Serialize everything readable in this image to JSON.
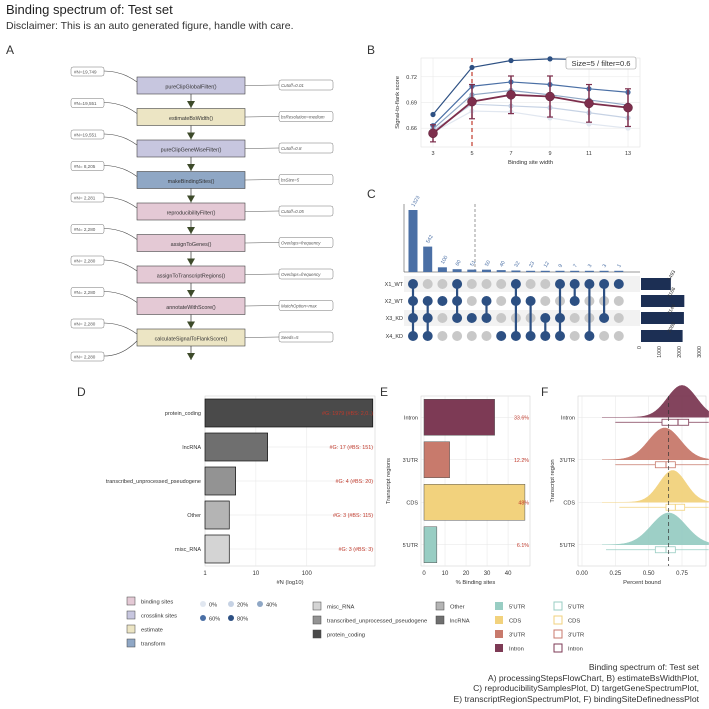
{
  "title": "Binding spectrum of: Test set",
  "subtitle": "Disclaimer: This is an auto generated figure, handle with care.",
  "caption": [
    "Binding spectrum of: Test set",
    "A) processingStepsFlowChart, B) estimateBsWidthPlot,",
    "C) reproducibilitySamplesPlot, D) targetGeneSpectrumPlot,",
    "E) transcriptRegionSpectrumPlot, F) bindingSiteDefinednessPlot"
  ],
  "panels": {
    "A": "A",
    "B": "B",
    "C": "C",
    "D": "D",
    "E": "E",
    "F": "F"
  },
  "colors": {
    "binding_sites": "#e4c9d5",
    "crosslink_sites": "#c7c6df",
    "estimate": "#ece5c4",
    "transform": "#8fa7c5",
    "ctrl_stroke": "#444444",
    "arrow": "#3d4a2a",
    "dark_blue": "#2d5083",
    "mid_blue": "#4a6fa5",
    "maroon": "#7d2e4c",
    "red_dash": "#c0392b",
    "utr5": "#98cdc3",
    "cds": "#f2d27d",
    "utr3": "#c87a6c",
    "intron": "#7d3a55"
  },
  "chart_data": [
    {
      "panel": "A",
      "type": "flowchart",
      "steps": [
        {
          "label": "pureClipGlobalFilter()",
          "kind": "crosslink_sites",
          "param": "Cutoff=0.01",
          "in": "#N=19,749",
          "out": "#N=19,551"
        },
        {
          "label": "estimateBsWidth()",
          "kind": "estimate",
          "param": "bsResolution=medium",
          "in": "#N=19,551",
          "out": "#N=19,551"
        },
        {
          "label": "pureClipGeneWiseFilter()",
          "kind": "crosslink_sites",
          "param": "Cutoff=0.8",
          "in": "#N=19,551",
          "out": "#N= 8,205"
        },
        {
          "label": "makeBindingSites()",
          "kind": "transform",
          "param": "bsSize=5",
          "in": "#N= 8,205",
          "out": "#N= 2,281"
        },
        {
          "label": "reproducibilityFilter()",
          "kind": "binding_sites",
          "param": "Cutoff=0.05",
          "in": "#N= 2,281",
          "out": "#N= 2,280"
        },
        {
          "label": "assignToGenes()",
          "kind": "binding_sites",
          "param": "Overlaps=frequency",
          "in": "#N= 2,280",
          "out": "#N= 2,280"
        },
        {
          "label": "assignToTranscriptRegions()",
          "kind": "binding_sites",
          "param": "Overlaps=frequency",
          "in": "#N= 2,280",
          "out": "#N= 2,280"
        },
        {
          "label": "annotateWithScore()",
          "kind": "binding_sites",
          "param": "MatchOption=max",
          "in": "#N= 2,280",
          "out": "#N= 2,280"
        },
        {
          "label": "calculateSignalToFlankScore()",
          "kind": "estimate",
          "param": "Seeds=5",
          "in": "#N= 2,280",
          "out": "#N= 2,280"
        }
      ]
    },
    {
      "panel": "B",
      "type": "line",
      "xlabel": "Binding site width",
      "ylabel": "Signal-to-flank score",
      "x": [
        3,
        5,
        7,
        9,
        11,
        13
      ],
      "ylim": [
        0.638,
        0.742
      ],
      "yticks": [
        0.66,
        0.69,
        0.72
      ],
      "annotation": "Size=5 / filter=0.6",
      "selected_x": 5,
      "series": [
        {
          "values": [
            0.676,
            0.731,
            0.739,
            0.741,
            0.74,
            0.734
          ],
          "color": "#2d5083"
        },
        {
          "values": [
            0.663,
            0.709,
            0.714,
            0.711,
            0.706,
            0.702
          ],
          "color": "#4a6fa5"
        },
        {
          "values": [
            0.659,
            0.699,
            0.704,
            0.699,
            0.693,
            0.687
          ],
          "color": "#8fa7c5"
        },
        {
          "values": [
            0.657,
            0.688,
            0.686,
            0.684,
            0.678,
            0.672
          ],
          "color": "#c6d2e4"
        },
        {
          "values": [
            0.655,
            0.68,
            0.679,
            0.672,
            0.665,
            0.66
          ],
          "color": "#e1e7f0"
        },
        {
          "values": [
            0.654,
            0.691,
            0.699,
            0.697,
            0.689,
            0.684
          ],
          "color": "#7d2e4c",
          "err": [
            0.01,
            0.02,
            0.022,
            0.024,
            0.022,
            0.022
          ]
        }
      ]
    },
    {
      "panel": "C",
      "type": "upset",
      "sets": [
        "X1_WT",
        "X2_WT",
        "X3_KD",
        "X4_KD"
      ],
      "set_sizes": [
        1493,
        2166,
        2146,
        2080
      ],
      "set_size_ticks": [
        0,
        1000,
        2000,
        3000
      ],
      "intersections": [
        {
          "count": 1323,
          "members": [
            1,
            1,
            1,
            1
          ]
        },
        {
          "count": 542,
          "members": [
            0,
            1,
            1,
            1
          ]
        },
        {
          "count": 100,
          "members": [
            0,
            1,
            0,
            0
          ]
        },
        {
          "count": 60,
          "members": [
            1,
            1,
            1,
            0
          ]
        },
        {
          "count": 51,
          "members": [
            0,
            0,
            1,
            0
          ]
        },
        {
          "count": 50,
          "members": [
            0,
            1,
            1,
            0
          ]
        },
        {
          "count": 40,
          "members": [
            0,
            0,
            0,
            1
          ]
        },
        {
          "count": 32,
          "members": [
            1,
            1,
            0,
            1
          ]
        },
        {
          "count": 23,
          "members": [
            0,
            1,
            0,
            1
          ]
        },
        {
          "count": 12,
          "members": [
            0,
            0,
            1,
            1
          ]
        },
        {
          "count": 9,
          "members": [
            1,
            0,
            1,
            1
          ]
        },
        {
          "count": 7,
          "members": [
            1,
            1,
            0,
            0
          ]
        },
        {
          "count": 3,
          "members": [
            1,
            0,
            0,
            1
          ]
        },
        {
          "count": 3,
          "members": [
            1,
            0,
            1,
            0
          ]
        },
        {
          "count": 1,
          "members": [
            1,
            0,
            0,
            0
          ]
        }
      ]
    },
    {
      "panel": "D",
      "type": "bar",
      "orientation": "horizontal",
      "xlabel": "#N (log10)",
      "log_x": true,
      "xlim": [
        1,
        1999
      ],
      "xticks": [
        1,
        10,
        100
      ],
      "categories": [
        "protein_coding",
        "lncRNA",
        "transcribed_unprocessed_pseudogene",
        "Other",
        "misc_RNA"
      ],
      "values": [
        1979,
        17,
        4,
        3,
        3
      ],
      "labels": [
        "#G: 1979 (#BS: 2,0..)",
        "#G: 17 (#BS: 151)",
        "#G: 4 (#BS: 20)",
        "#G: 3 (#BS: 115)",
        "#G: 3 (#BS: 3)"
      ],
      "fills": [
        "#4a4a4a",
        "#6f6f6f",
        "#939393",
        "#b4b4b4",
        "#d4d4d4"
      ]
    },
    {
      "panel": "E",
      "type": "bar",
      "orientation": "horizontal",
      "xlabel": "% Binding sites",
      "ylabel": "Transcript regions",
      "xlim": [
        0,
        49
      ],
      "xticks": [
        0,
        10,
        20,
        30,
        40
      ],
      "categories": [
        "Intron",
        "3'UTR",
        "CDS",
        "5'UTR"
      ],
      "values": [
        33.6,
        12.2,
        48,
        6.1
      ],
      "labels": [
        "33.6%",
        "12.2%",
        "48%",
        "6.1%"
      ],
      "fills": [
        "#7d3a55",
        "#c87a6c",
        "#f2d27d",
        "#98cdc3"
      ]
    },
    {
      "panel": "F",
      "type": "density",
      "xlabel": "Percent bound",
      "ylabel": "Transcript region",
      "xlim": [
        0,
        0.9
      ],
      "xticks": [
        0.0,
        0.25,
        0.5,
        0.75
      ],
      "ref_line": 0.65,
      "categories": [
        "Intron",
        "3'UTR",
        "CDS",
        "5'UTR"
      ],
      "fills": [
        "#7d3a55",
        "#c87a6c",
        "#f2d27d",
        "#98cdc3"
      ],
      "series": [
        {
          "name": "Intron",
          "mean": 0.75,
          "sd": 0.11,
          "box": [
            0.6,
            0.72,
            0.8
          ],
          "whisker": [
            0.25,
            0.95
          ]
        },
        {
          "name": "3'UTR",
          "mean": 0.62,
          "sd": 0.12,
          "box": [
            0.55,
            0.63,
            0.7
          ],
          "whisker": [
            0.25,
            0.95
          ]
        },
        {
          "name": "CDS",
          "mean": 0.68,
          "sd": 0.1,
          "box": [
            0.63,
            0.7,
            0.77
          ],
          "whisker": [
            0.28,
            0.95
          ]
        },
        {
          "name": "5'UTR",
          "mean": 0.65,
          "sd": 0.13,
          "box": [
            0.55,
            0.63,
            0.7
          ],
          "whisker": [
            0.18,
            0.95
          ]
        }
      ]
    }
  ],
  "legends": {
    "a_types": [
      "binding sites",
      "crosslink sites",
      "estimate",
      "transform"
    ],
    "b_filter": [
      "0%",
      "20%",
      "40%",
      "60%",
      "80%"
    ],
    "d_types": [
      "misc_RNA",
      "transcribed_unprocessed_pseudogene",
      "protein_coding"
    ],
    "d_types2": [
      "Other",
      "lncRNA"
    ],
    "e_regions": [
      "5'UTR",
      "CDS",
      "3'UTR",
      "Intron"
    ],
    "f_regions": [
      "5'UTR",
      "CDS",
      "3'UTR",
      "Intron"
    ]
  }
}
